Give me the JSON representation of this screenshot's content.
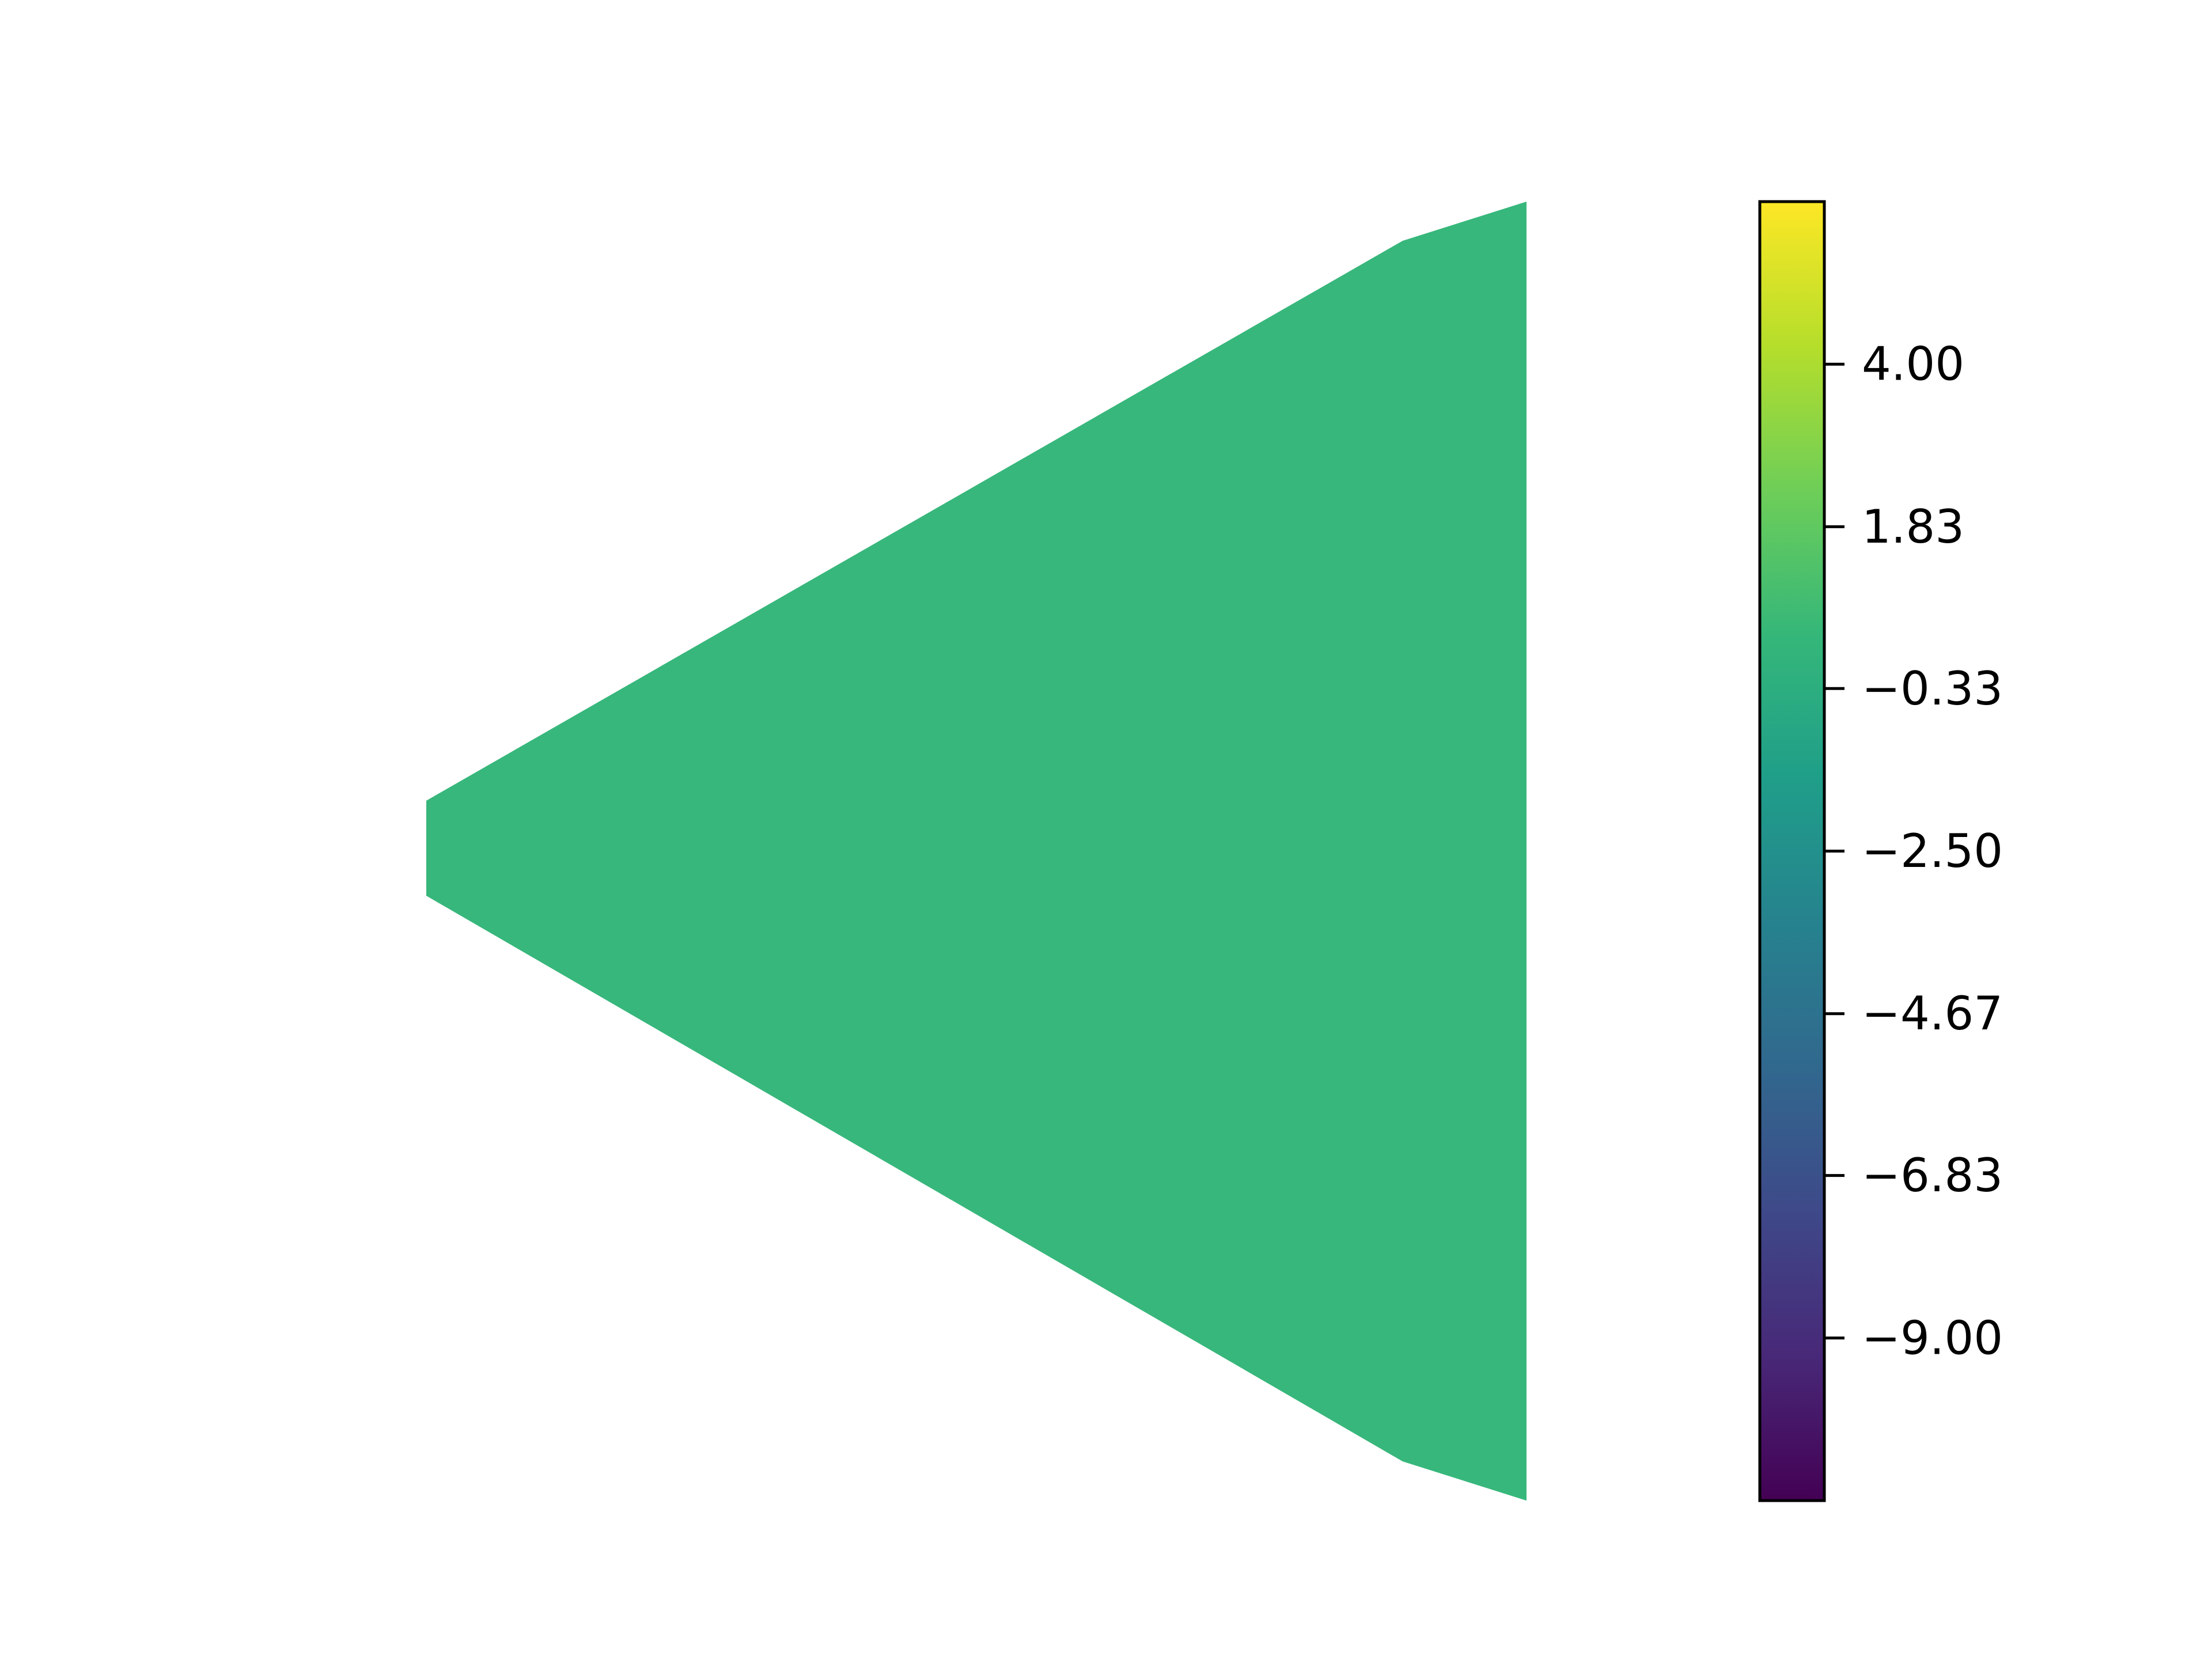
{
  "chart_data": {
    "type": "heatmap",
    "title": "",
    "xlabel": "",
    "ylabel": "",
    "axes_visible": false,
    "field": {
      "value": 0.0,
      "color": "#37b77b",
      "shape": "polygon"
    },
    "colorbar": {
      "colormap": "viridis",
      "range": [
        -11.17,
        6.17
      ],
      "orientation": "vertical",
      "placement": "right",
      "ticks": [
        4.0,
        1.83,
        -0.33,
        -2.5,
        -4.67,
        -6.83,
        -9.0
      ],
      "tick_labels": [
        "4.00",
        "1.83",
        "−0.33",
        "−2.50",
        "−4.67",
        "−6.83",
        "−9.00"
      ],
      "colors": [
        "#440154",
        "#482878",
        "#3e4989",
        "#31688e",
        "#26828e",
        "#1f9e89",
        "#35b779",
        "#6ece58",
        "#b5de2b",
        "#fde725"
      ]
    }
  }
}
